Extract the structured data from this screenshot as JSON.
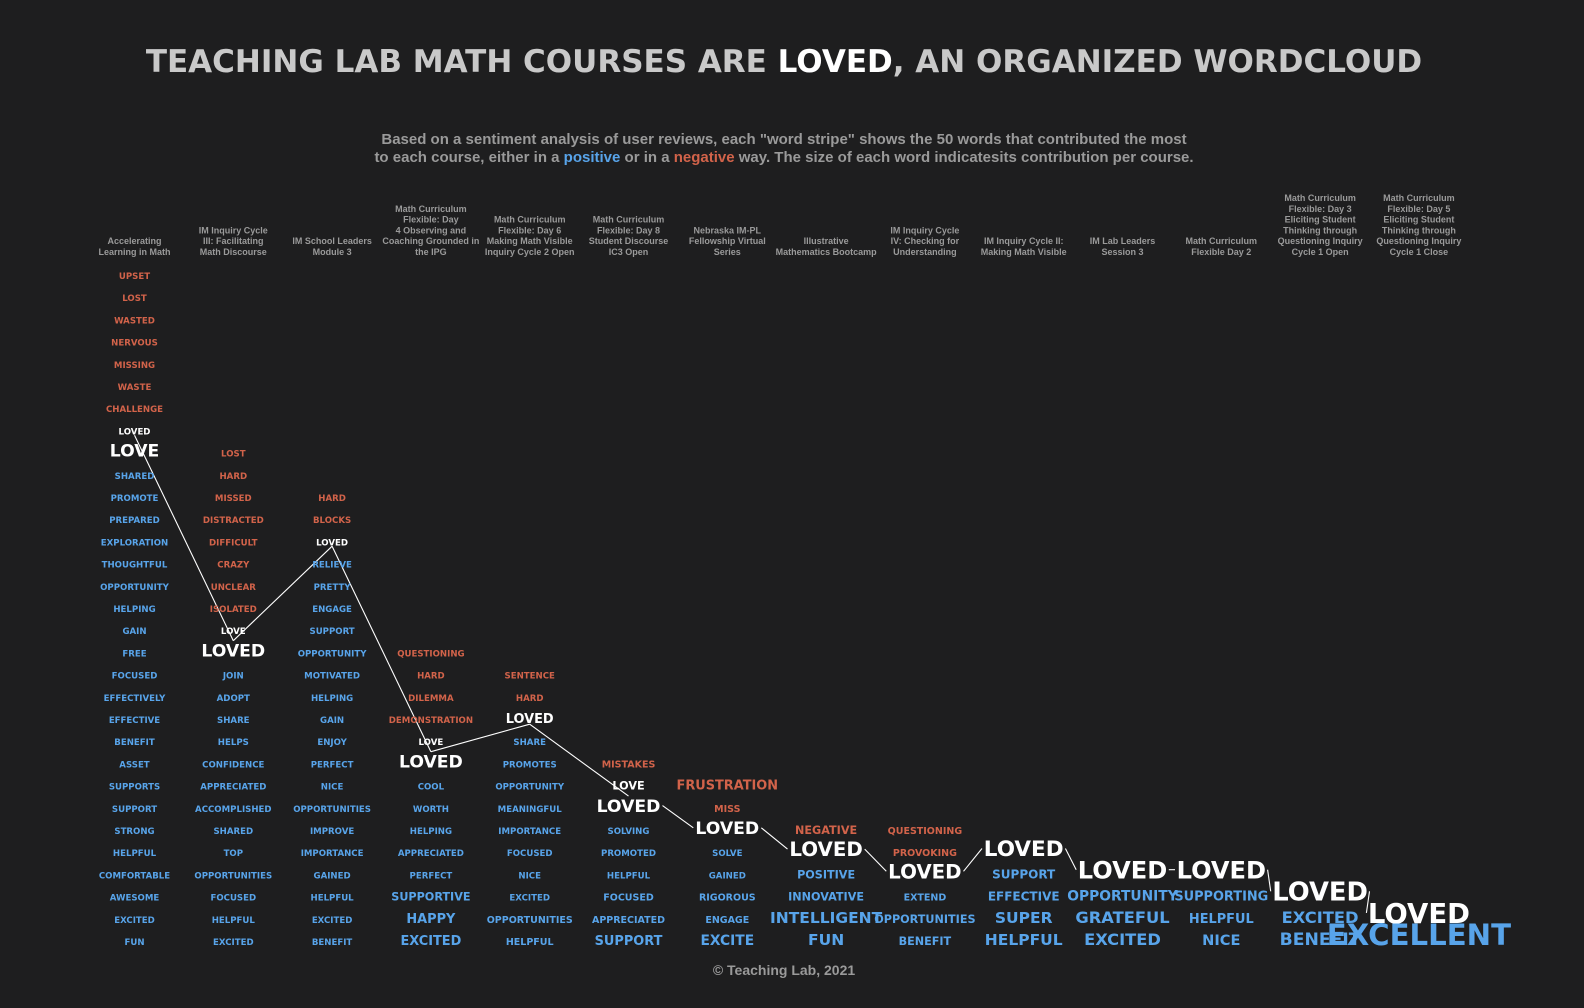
{
  "title": {
    "pre": "TEACHING LAB MATH COURSES ARE ",
    "highlight": "LOVED",
    "post": ", AN ORGANIZED WORDCLOUD"
  },
  "subtitle": {
    "line1": "Based on a sentiment analysis of user reviews, each \"word stripe\" shows the 50 words that contributed the most",
    "line2_pre": "to each course, either in a ",
    "positive": "positive",
    "line2_mid": " or in a ",
    "negative": "negative",
    "line2_post": " way. The size of each word indicatesits contribution per course."
  },
  "footer": "© Teaching Lab, 2021",
  "colors": {
    "background": "#1e1e1f",
    "positive": "#58a4ea",
    "negative": "#d2634a",
    "loved": "#ffffff",
    "header": "#9a9a9a"
  },
  "chart_data": {
    "type": "wordcloud",
    "connector_word": "LOVED",
    "courses": [
      {
        "name": "Accelerating Learning in Math",
        "header_lines": [
          "Accelerating",
          "Learning in Math"
        ],
        "words": [
          [
            "UPSET",
            "neg",
            1
          ],
          [
            "LOST",
            "neg",
            1
          ],
          [
            "WASTED",
            "neg",
            1
          ],
          [
            "NERVOUS",
            "neg",
            1
          ],
          [
            "MISSING",
            "neg",
            1
          ],
          [
            "WASTE",
            "neg",
            1
          ],
          [
            "CHALLENGE",
            "neg",
            1
          ],
          [
            "LOVED",
            "loved",
            1
          ],
          [
            "LOVE",
            "loved",
            2
          ],
          [
            "SHARED",
            "pos",
            1
          ],
          [
            "PROMOTE",
            "pos",
            1
          ],
          [
            "PREPARED",
            "pos",
            1
          ],
          [
            "EXPLORATION",
            "pos",
            1
          ],
          [
            "THOUGHTFUL",
            "pos",
            1
          ],
          [
            "OPPORTUNITY",
            "pos",
            1
          ],
          [
            "HELPING",
            "pos",
            1
          ],
          [
            "GAIN",
            "pos",
            1
          ],
          [
            "FREE",
            "pos",
            1
          ],
          [
            "FOCUSED",
            "pos",
            1
          ],
          [
            "EFFECTIVELY",
            "pos",
            1
          ],
          [
            "EFFECTIVE",
            "pos",
            1
          ],
          [
            "BENEFIT",
            "pos",
            1
          ],
          [
            "ASSET",
            "pos",
            1
          ],
          [
            "SUPPORTS",
            "pos",
            1
          ],
          [
            "SUPPORT",
            "pos",
            1
          ],
          [
            "STRONG",
            "pos",
            1
          ],
          [
            "HELPFUL",
            "pos",
            1
          ],
          [
            "COMFORTABLE",
            "pos",
            1
          ],
          [
            "AWESOME",
            "pos",
            1
          ],
          [
            "EXCITED",
            "pos",
            1
          ],
          [
            "FUN",
            "pos",
            1
          ]
        ]
      },
      {
        "name": "IM Inquiry Cycle III: Facilitating Math Discourse",
        "header_lines": [
          "IM Inquiry Cycle",
          "III: Facilitating",
          "Math Discourse"
        ],
        "words": [
          [
            "LOST",
            "neg",
            1
          ],
          [
            "HARD",
            "neg",
            1
          ],
          [
            "MISSED",
            "neg",
            1
          ],
          [
            "DISTRACTED",
            "neg",
            1
          ],
          [
            "DIFFICULT",
            "neg",
            1
          ],
          [
            "CRAZY",
            "neg",
            1
          ],
          [
            "UNCLEAR",
            "neg",
            1
          ],
          [
            "ISOLATED",
            "neg",
            1
          ],
          [
            "LOVE",
            "loved",
            1
          ],
          [
            "LOVED",
            "loved",
            2
          ],
          [
            "JOIN",
            "pos",
            1
          ],
          [
            "ADOPT",
            "pos",
            1
          ],
          [
            "SHARE",
            "pos",
            1
          ],
          [
            "HELPS",
            "pos",
            1
          ],
          [
            "CONFIDENCE",
            "pos",
            1
          ],
          [
            "APPRECIATED",
            "pos",
            1
          ],
          [
            "ACCOMPLISHED",
            "pos",
            1
          ],
          [
            "SHARED",
            "pos",
            1
          ],
          [
            "TOP",
            "pos",
            1
          ],
          [
            "OPPORTUNITIES",
            "pos",
            1
          ],
          [
            "FOCUSED",
            "pos",
            1
          ],
          [
            "HELPFUL",
            "pos",
            1
          ],
          [
            "EXCITED",
            "pos",
            1
          ]
        ]
      },
      {
        "name": "IM School Leaders Module 3",
        "header_lines": [
          "IM School Leaders",
          "Module 3"
        ],
        "words": [
          [
            "HARD",
            "neg",
            1
          ],
          [
            "BLOCKS",
            "neg",
            1
          ],
          [
            "LOVED",
            "loved",
            1
          ],
          [
            "RELIEVE",
            "pos",
            1
          ],
          [
            "PRETTY",
            "pos",
            1
          ],
          [
            "ENGAGE",
            "pos",
            1
          ],
          [
            "SUPPORT",
            "pos",
            1
          ],
          [
            "OPPORTUNITY",
            "pos",
            1
          ],
          [
            "MOTIVATED",
            "pos",
            1
          ],
          [
            "HELPING",
            "pos",
            1
          ],
          [
            "GAIN",
            "pos",
            1
          ],
          [
            "ENJOY",
            "pos",
            1
          ],
          [
            "PERFECT",
            "pos",
            1
          ],
          [
            "NICE",
            "pos",
            1
          ],
          [
            "OPPORTUNITIES",
            "pos",
            1
          ],
          [
            "IMPROVE",
            "pos",
            1
          ],
          [
            "IMPORTANCE",
            "pos",
            1
          ],
          [
            "GAINED",
            "pos",
            1
          ],
          [
            "HELPFUL",
            "pos",
            1
          ],
          [
            "EXCITED",
            "pos",
            1
          ],
          [
            "BENEFIT",
            "pos",
            1
          ]
        ]
      },
      {
        "name": "Math Curriculum Flexible: Day 4 Observing and Coaching Grounded in the IPG",
        "header_lines": [
          "Math Curriculum",
          "Flexible: Day",
          "4 Observing and",
          "Coaching Grounded in",
          "the IPG"
        ],
        "words": [
          [
            "QUESTIONING",
            "neg",
            1
          ],
          [
            "HARD",
            "neg",
            1
          ],
          [
            "DILEMMA",
            "neg",
            1
          ],
          [
            "DEMONSTRATION",
            "neg",
            1
          ],
          [
            "LOVE",
            "loved",
            1
          ],
          [
            "LOVED",
            "loved",
            2
          ],
          [
            "COOL",
            "pos",
            1
          ],
          [
            "WORTH",
            "pos",
            1
          ],
          [
            "HELPING",
            "pos",
            1
          ],
          [
            "APPRECIATED",
            "pos",
            1
          ],
          [
            "PERFECT",
            "pos",
            1
          ],
          [
            "SUPPORTIVE",
            "pos",
            1.3
          ],
          [
            "HAPPY",
            "pos",
            1.5
          ],
          [
            "EXCITED",
            "pos",
            1.5
          ]
        ]
      },
      {
        "name": "Math Curriculum Flexible: Day 6 Making Math Visible Inquiry Cycle 2 Open",
        "header_lines": [
          "Math Curriculum",
          "Flexible: Day 6",
          "Making Math Visible",
          "Inquiry Cycle 2 Open"
        ],
        "words": [
          [
            "SENTENCE",
            "neg",
            1
          ],
          [
            "HARD",
            "neg",
            1
          ],
          [
            "LOVED",
            "loved",
            1.5
          ],
          [
            "SHARE",
            "pos",
            1
          ],
          [
            "PROMOTES",
            "pos",
            1
          ],
          [
            "OPPORTUNITY",
            "pos",
            1
          ],
          [
            "MEANINGFUL",
            "pos",
            1
          ],
          [
            "IMPORTANCE",
            "pos",
            1
          ],
          [
            "FOCUSED",
            "pos",
            1
          ],
          [
            "NICE",
            "pos",
            1
          ],
          [
            "EXCITED",
            "pos",
            1
          ],
          [
            "OPPORTUNITIES",
            "pos",
            1.1
          ],
          [
            "HELPFUL",
            "pos",
            1.1
          ]
        ]
      },
      {
        "name": "Math Curriculum Flexible: Day 8 Student Discourse IC3 Open",
        "header_lines": [
          "Math Curriculum",
          "Flexible: Day 8",
          "Student Discourse",
          "IC3 Open"
        ],
        "words": [
          [
            "MISTAKES",
            "neg",
            1.1
          ],
          [
            "LOVE",
            "loved",
            1.3
          ],
          [
            "LOVED",
            "loved",
            2
          ],
          [
            "SOLVING",
            "pos",
            1
          ],
          [
            "PROMOTED",
            "pos",
            1
          ],
          [
            "HELPFUL",
            "pos",
            1
          ],
          [
            "FOCUSED",
            "pos",
            1.1
          ],
          [
            "APPRECIATED",
            "pos",
            1.1
          ],
          [
            "SUPPORT",
            "pos",
            1.5
          ]
        ]
      },
      {
        "name": "Nebraska IM-PL Fellowship Virtual Series",
        "header_lines": [
          "Nebraska IM-PL",
          "Fellowship Virtual",
          "Series"
        ],
        "words": [
          [
            "FRUSTRATION",
            "neg",
            1.5
          ],
          [
            "MISS",
            "neg",
            1.1
          ],
          [
            "LOVED",
            "loved",
            2
          ],
          [
            "SOLVE",
            "pos",
            1
          ],
          [
            "GAINED",
            "pos",
            1
          ],
          [
            "RIGOROUS",
            "pos",
            1.1
          ],
          [
            "ENGAGE",
            "pos",
            1.1
          ],
          [
            "EXCITE",
            "pos",
            1.6
          ]
        ]
      },
      {
        "name": "Illustrative Mathematics Bootcamp",
        "header_lines": [
          "Illustrative",
          "Mathematics Bootcamp"
        ],
        "words": [
          [
            "NEGATIVE",
            "neg",
            1.3
          ],
          [
            "LOVED",
            "loved",
            2.3
          ],
          [
            "POSITIVE",
            "pos",
            1.3
          ],
          [
            "INNOVATIVE",
            "pos",
            1.3
          ],
          [
            "INTELLIGENT",
            "pos",
            1.8
          ],
          [
            "FUN",
            "pos",
            1.8
          ]
        ]
      },
      {
        "name": "IM Inquiry Cycle IV: Checking for Understanding",
        "header_lines": [
          "IM Inquiry Cycle",
          "IV: Checking for",
          "Understanding"
        ],
        "words": [
          [
            "QUESTIONING",
            "neg",
            1.1
          ],
          [
            "PROVOKING",
            "neg",
            1.1
          ],
          [
            "LOVED",
            "loved",
            2.3
          ],
          [
            "EXTEND",
            "pos",
            1.1
          ],
          [
            "OPPORTUNITIES",
            "pos",
            1.3
          ],
          [
            "BENEFIT",
            "pos",
            1.3
          ]
        ]
      },
      {
        "name": "IM Inquiry Cycle II: Making Math Visible",
        "header_lines": [
          "IM Inquiry Cycle II:",
          "Making Math Visible"
        ],
        "words": [
          [
            "LOVED",
            "loved",
            2.5
          ],
          [
            "SUPPORT",
            "pos",
            1.4
          ],
          [
            "EFFECTIVE",
            "pos",
            1.4
          ],
          [
            "SUPER",
            "pos",
            1.8
          ],
          [
            "HELPFUL",
            "pos",
            1.8
          ]
        ]
      },
      {
        "name": "IM Lab Leaders Session 3",
        "header_lines": [
          "IM Lab Leaders",
          "Session 3"
        ],
        "words": [
          [
            "LOVED",
            "loved",
            2.8
          ],
          [
            "OPPORTUNITY",
            "pos",
            1.6
          ],
          [
            "GRATEFUL",
            "pos",
            1.9
          ],
          [
            "EXCITED",
            "pos",
            1.9
          ]
        ]
      },
      {
        "name": "Math Curriculum Flexible Day 2",
        "header_lines": [
          "Math Curriculum",
          "Flexible Day 2"
        ],
        "words": [
          [
            "LOVED",
            "loved",
            2.8
          ],
          [
            "SUPPORTING",
            "pos",
            1.5
          ],
          [
            "HELPFUL",
            "pos",
            1.5
          ],
          [
            "NICE",
            "pos",
            1.7
          ]
        ]
      },
      {
        "name": "Math Curriculum Flexible: Day 3 Eliciting Student Thinking through Questioning Inquiry Cycle 1 Open",
        "header_lines": [
          "Math Curriculum",
          "Flexible: Day 3",
          "Eliciting Student",
          "Thinking through",
          "Questioning Inquiry",
          "Cycle 1 Open"
        ],
        "words": [
          [
            "LOVED",
            "loved",
            3
          ],
          [
            "EXCITED",
            "pos",
            1.9
          ],
          [
            "BENEFIT",
            "pos",
            2
          ]
        ]
      },
      {
        "name": "Math Curriculum Flexible: Day 5 Eliciting Student Thinking through Questioning Inquiry Cycle 1 Close",
        "header_lines": [
          "Math Curriculum",
          "Flexible: Day 5",
          "Eliciting Student",
          "Thinking through",
          "Questioning Inquiry",
          "Cycle 1 Close"
        ],
        "words": [
          [
            "LOVED",
            "loved",
            3.2
          ],
          [
            "EXCELLENT",
            "pos",
            3.4
          ]
        ]
      }
    ]
  }
}
